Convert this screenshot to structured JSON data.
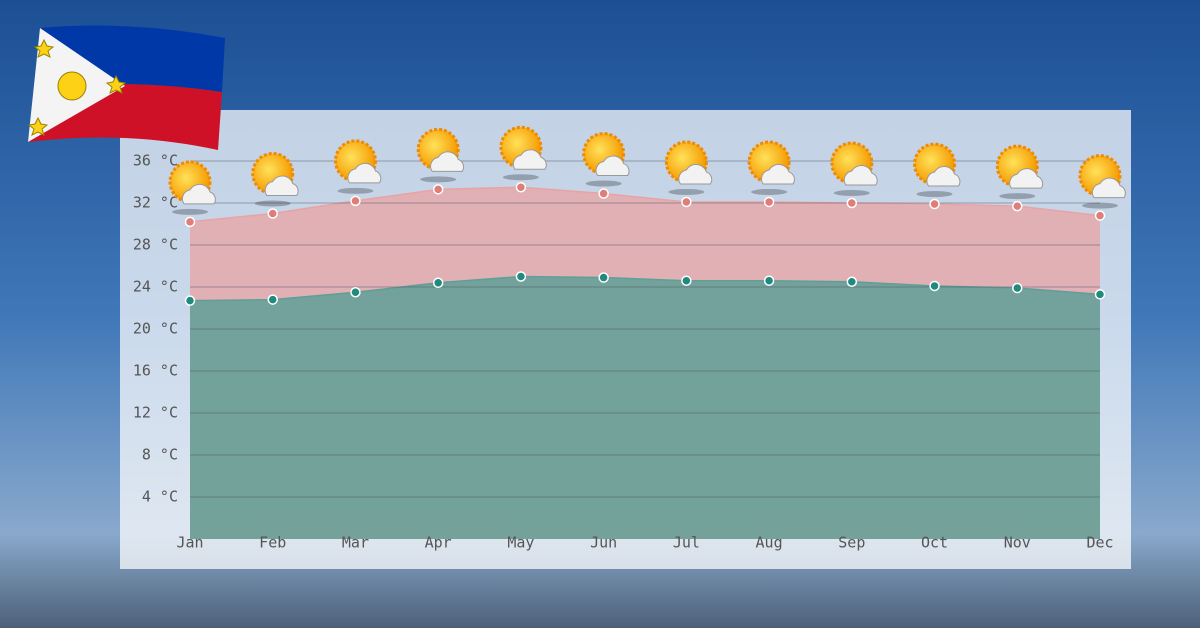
{
  "chart_data": {
    "type": "area",
    "categories": [
      "Jan",
      "Feb",
      "Mar",
      "Apr",
      "May",
      "Jun",
      "Jul",
      "Aug",
      "Sep",
      "Oct",
      "Nov",
      "Dec"
    ],
    "series": [
      {
        "color": "#e8a3a3",
        "values": [
          30.2,
          31.0,
          32.2,
          33.3,
          33.5,
          32.9,
          32.1,
          32.1,
          32.0,
          31.9,
          31.7,
          30.8
        ]
      },
      {
        "color": "#5f9f96",
        "values": [
          22.7,
          22.8,
          23.5,
          24.4,
          25.0,
          24.9,
          24.6,
          24.6,
          24.5,
          24.1,
          23.9,
          23.3
        ]
      }
    ],
    "ylim": [
      0,
      36
    ],
    "yticks": [
      {
        "value": 4,
        "label": "4 °C"
      },
      {
        "value": 8,
        "label": "8 °C"
      },
      {
        "value": 12,
        "label": "12 °C"
      },
      {
        "value": 16,
        "label": "16 °C"
      },
      {
        "value": 20,
        "label": "20 °C"
      },
      {
        "value": 24,
        "label": "24 °C"
      },
      {
        "value": 28,
        "label": "28 °C"
      },
      {
        "value": 32,
        "label": "32 °C"
      },
      {
        "value": 36,
        "label": "36 °C"
      }
    ],
    "grid": true
  }
}
